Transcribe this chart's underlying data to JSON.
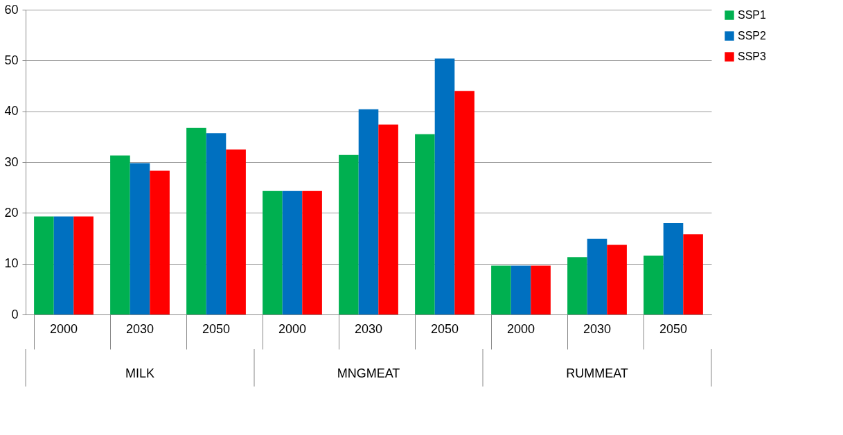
{
  "chart_data": {
    "type": "bar",
    "categories": [
      "2000",
      "2030",
      "2050",
      "2000",
      "2030",
      "2050",
      "2000",
      "2030",
      "2050"
    ],
    "series": [
      {
        "name": "SSP1",
        "color": "#00b050",
        "values": [
          19.3,
          31.3,
          36.7,
          24.3,
          31.4,
          35.5,
          9.6,
          11.3,
          11.6
        ]
      },
      {
        "name": "SSP2",
        "color": "#0070c0",
        "values": [
          19.3,
          29.8,
          35.7,
          24.3,
          40.4,
          50.4,
          9.6,
          14.9,
          18.0
        ]
      },
      {
        "name": "SSP3",
        "color": "#ff0000",
        "values": [
          19.3,
          28.3,
          32.5,
          24.3,
          37.4,
          44.0,
          9.6,
          13.7,
          15.8
        ]
      }
    ],
    "annotations": [
      "MILK",
      "MNGMEAT",
      "RUMMEAT"
    ],
    "ylim": [
      0,
      60
    ],
    "yticks": [
      0,
      10,
      20,
      30,
      40,
      50,
      60
    ],
    "grid": "y",
    "legend": "right"
  }
}
